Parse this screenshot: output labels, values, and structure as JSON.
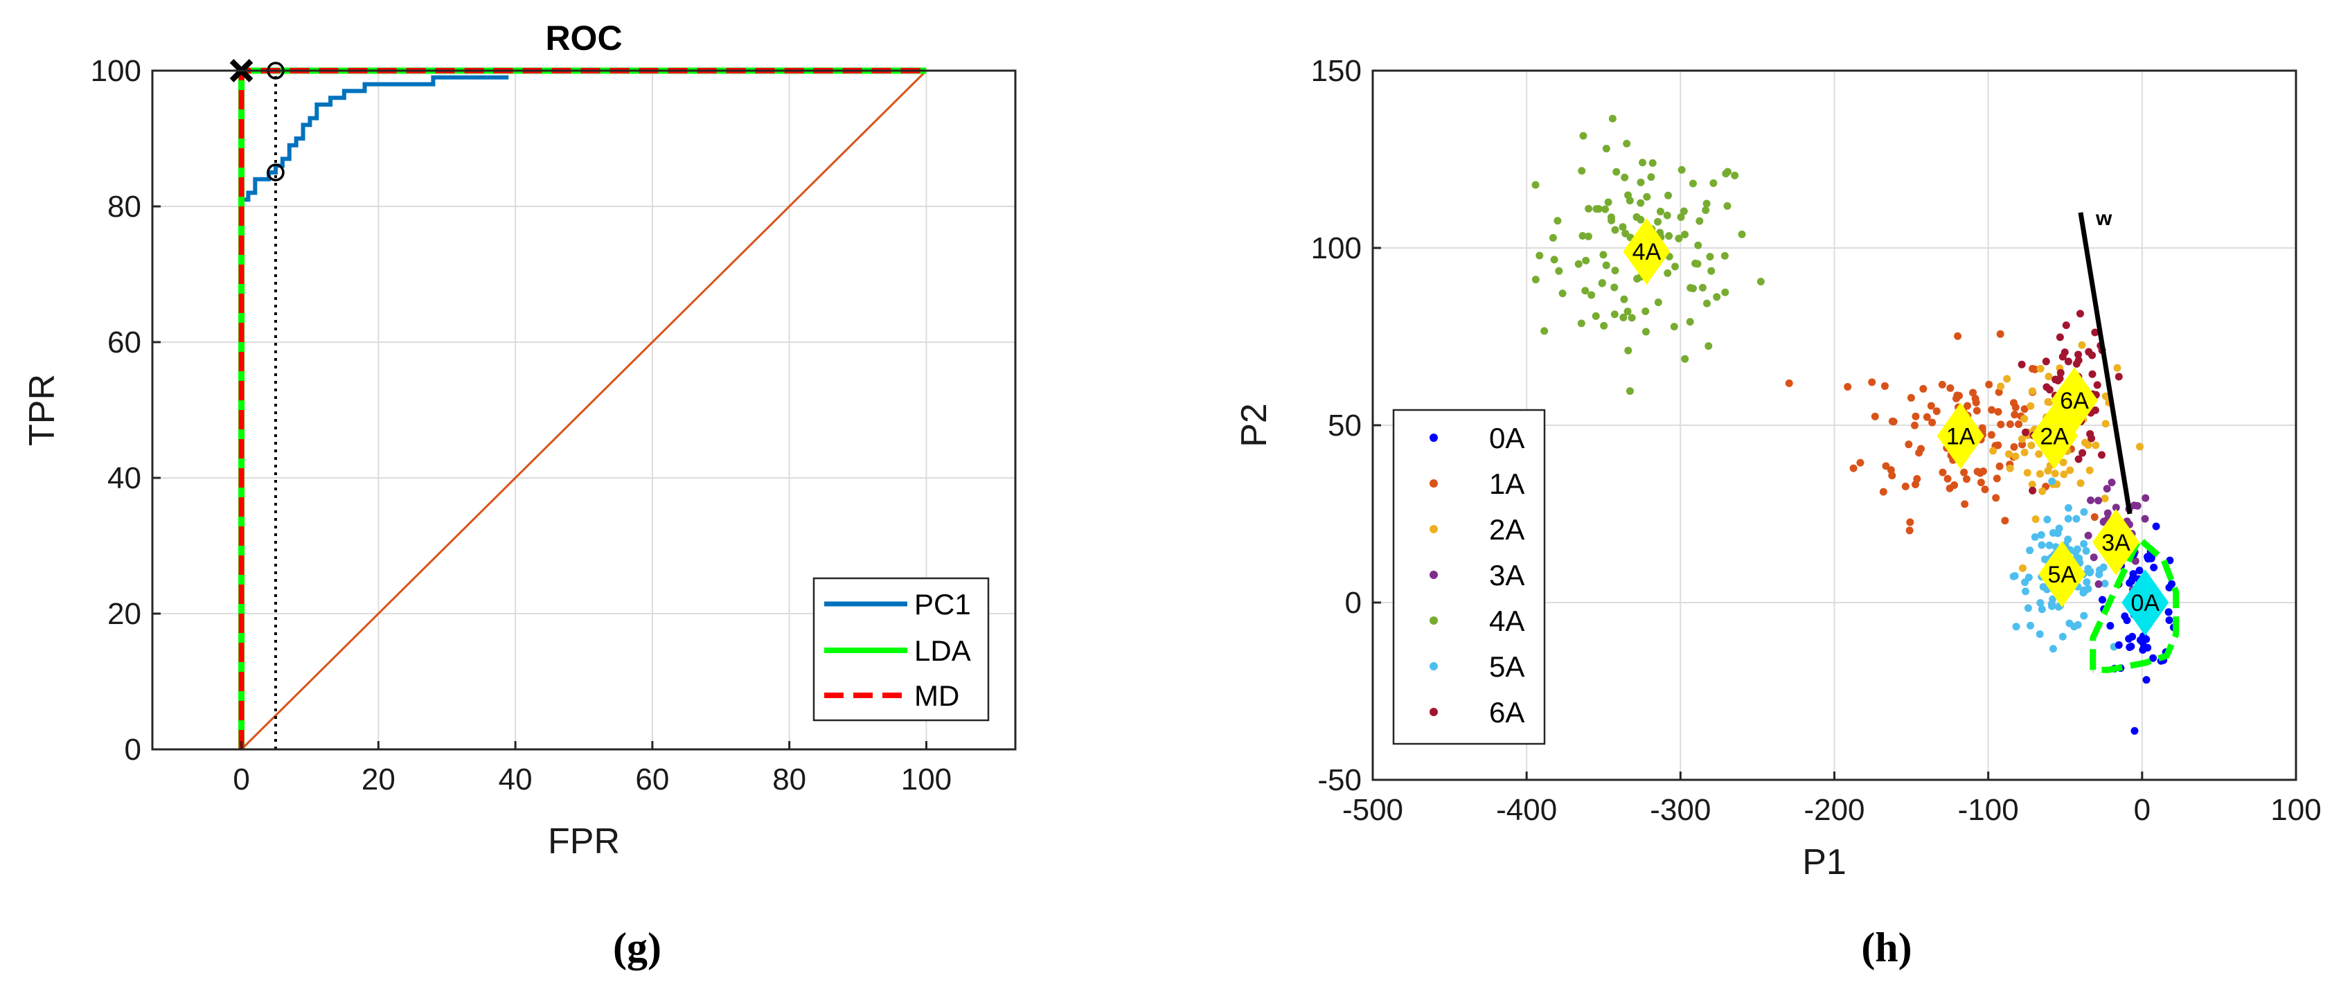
{
  "chart_data": [
    {
      "type": "line",
      "title": "ROC",
      "xlabel": "FPR",
      "ylabel": "TPR",
      "xlim": [
        -13,
        113
      ],
      "ylim": [
        0,
        100
      ],
      "xticks": [
        0,
        20,
        40,
        60,
        80,
        100
      ],
      "yticks": [
        0,
        20,
        40,
        60,
        80,
        100
      ],
      "grid": true,
      "legend_position": "bottom-right",
      "series": [
        {
          "name": "PC1",
          "color": "#0072BD",
          "style": "solid",
          "x": [
            0,
            0,
            1,
            1,
            2,
            2,
            3,
            3,
            4,
            4,
            5,
            5,
            6,
            6,
            7,
            7,
            8,
            8,
            9,
            9,
            10,
            10,
            11,
            11,
            12,
            12,
            13,
            13,
            14,
            14,
            15,
            15,
            17,
            17,
            18,
            18,
            28,
            28,
            39
          ],
          "y": [
            0,
            81,
            81,
            82,
            82,
            84,
            84,
            84,
            84,
            85,
            85,
            86,
            86,
            87,
            87,
            89,
            89,
            90,
            90,
            92,
            92,
            93,
            93,
            95,
            95,
            95,
            95,
            96,
            96,
            96,
            96,
            97,
            97,
            97,
            97,
            98,
            98,
            99,
            99
          ]
        },
        {
          "name": "LDA",
          "color": "#00FF00",
          "style": "solid",
          "x": [
            0,
            0,
            100
          ],
          "y": [
            0,
            100,
            100
          ]
        },
        {
          "name": "MD",
          "color": "#FF0000",
          "style": "dashed",
          "x": [
            0,
            0,
            100
          ],
          "y": [
            0,
            100,
            100
          ]
        },
        {
          "name": "",
          "color": "#D95319",
          "style": "solid",
          "x": [
            0,
            100
          ],
          "y": [
            0,
            100
          ]
        },
        {
          "name": "",
          "color": "#000000",
          "style": "dotted",
          "x": [
            5,
            5
          ],
          "y": [
            0,
            100
          ]
        }
      ],
      "markers": [
        {
          "shape": "x",
          "x": 0,
          "y": 100,
          "color": "#000000"
        },
        {
          "shape": "circle",
          "x": 5,
          "y": 100,
          "color": "#000000"
        },
        {
          "shape": "circle",
          "x": 5,
          "y": 85,
          "color": "#000000"
        }
      ],
      "legend": [
        "PC1",
        "LDA",
        "MD"
      ],
      "panel_label": "(g)"
    },
    {
      "type": "scatter",
      "title": "",
      "xlabel": "P1",
      "ylabel": "P2",
      "xlim": [
        -500,
        100
      ],
      "ylim": [
        -50,
        150
      ],
      "xticks": [
        -500,
        -400,
        -300,
        -200,
        -100,
        0,
        100
      ],
      "yticks": [
        -50,
        0,
        50,
        100,
        150
      ],
      "grid": true,
      "legend_position": "bottom-left",
      "series": [
        {
          "name": "0A",
          "color": "#0000FF",
          "center": [
            2,
            0
          ],
          "spread": [
            12,
            9
          ],
          "count": 60,
          "centroid_color": "#00E5EE"
        },
        {
          "name": "1A",
          "color": "#D95319",
          "center": [
            -118,
            48
          ],
          "spread": [
            32,
            12
          ],
          "count": 110,
          "centroid_color": "#FFFF00"
        },
        {
          "name": "2A",
          "color": "#EDB120",
          "center": [
            -57,
            47
          ],
          "spread": [
            20,
            11
          ],
          "count": 60,
          "centroid_color": "#FFFF00"
        },
        {
          "name": "3A",
          "color": "#7E2F8E",
          "center": [
            -17,
            17
          ],
          "spread": [
            12,
            8
          ],
          "count": 40,
          "centroid_color": "#FFFF00"
        },
        {
          "name": "4A",
          "color": "#77AC30",
          "center": [
            -322,
            99
          ],
          "spread": [
            35,
            15
          ],
          "count": 110,
          "centroid_color": "#FFFF00"
        },
        {
          "name": "5A",
          "color": "#4DBEEE",
          "center": [
            -52,
            8
          ],
          "spread": [
            15,
            8
          ],
          "count": 90,
          "centroid_color": "#FFFF00"
        },
        {
          "name": "6A",
          "color": "#A2142F",
          "center": [
            -44,
            57
          ],
          "spread": [
            12,
            10
          ],
          "count": 60,
          "centroid_color": "#FFFF00"
        }
      ],
      "centroids": [
        {
          "label": "4A",
          "x": -322,
          "y": 99,
          "color": "#FFFF00"
        },
        {
          "label": "1A",
          "x": -118,
          "y": 47,
          "color": "#FFFF00"
        },
        {
          "label": "6A",
          "x": -44,
          "y": 57,
          "color": "#FFFF00"
        },
        {
          "label": "2A",
          "x": -57,
          "y": 47,
          "color": "#FFFF00"
        },
        {
          "label": "3A",
          "x": -17,
          "y": 17,
          "color": "#FFFF00"
        },
        {
          "label": "5A",
          "x": -52,
          "y": 8,
          "color": "#FFFF00"
        },
        {
          "label": "0A",
          "x": 2,
          "y": 0,
          "color": "#00E5EE"
        }
      ],
      "projection_line": {
        "label": "w",
        "x": [
          -40,
          -8
        ],
        "y": [
          110,
          25
        ],
        "color": "#000000"
      },
      "boundary": {
        "color": "#00FF00",
        "style": "dashed",
        "x": [
          -32,
          -32,
          -2,
          14,
          22,
          22,
          16,
          2,
          -22,
          -32
        ],
        "y": [
          -19,
          -10,
          18,
          12,
          3,
          -9,
          -15,
          -17,
          -19,
          -19
        ]
      },
      "legend": [
        "0A",
        "1A",
        "2A",
        "3A",
        "4A",
        "5A",
        "6A"
      ],
      "panel_label": "(h)"
    }
  ]
}
